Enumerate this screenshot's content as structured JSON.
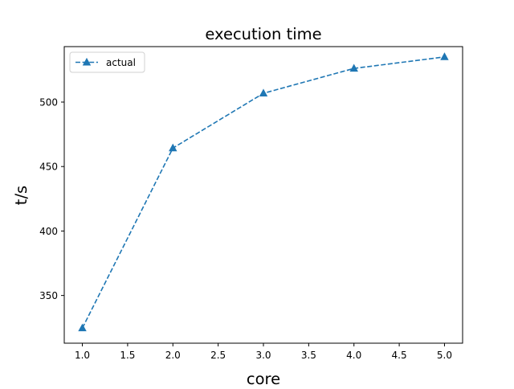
{
  "chart_data": {
    "type": "line",
    "title": "execution time",
    "xlabel": "core",
    "ylabel": "t/s",
    "xlim": [
      0.8,
      5.2
    ],
    "ylim": [
      313,
      543
    ],
    "xticks": [
      1.0,
      1.5,
      2.0,
      2.5,
      3.0,
      3.5,
      4.0,
      4.5,
      5.0
    ],
    "xtick_labels": [
      "1.0",
      "1.5",
      "2.0",
      "2.5",
      "3.0",
      "3.5",
      "4.0",
      "4.5",
      "5.0"
    ],
    "yticks": [
      350,
      400,
      450,
      500
    ],
    "ytick_labels": [
      "350",
      "400",
      "450",
      "500"
    ],
    "grid": false,
    "legend_position": "top-left",
    "series": [
      {
        "name": "actual",
        "x": [
          1,
          2,
          3,
          4,
          5
        ],
        "y": [
          324.7,
          464.3,
          506.8,
          526.1,
          535.0
        ],
        "color": "#1f77b4",
        "linestyle": "dashed",
        "marker": "triangle-up"
      }
    ]
  }
}
